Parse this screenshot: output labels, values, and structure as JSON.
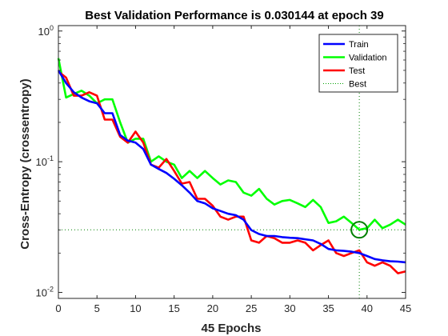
{
  "chart_data": {
    "type": "line",
    "title": "Best Validation Performance is 0.030144 at epoch 39",
    "xlabel": "45 Epochs",
    "ylabel": "Cross-Entropy  (crossentropy)",
    "xlim": [
      0,
      45
    ],
    "ylim": [
      0.009,
      1.1
    ],
    "yscale": "log",
    "xticks": [
      0,
      5,
      10,
      15,
      20,
      25,
      30,
      35,
      40,
      45
    ],
    "yticks": [
      {
        "value": 1,
        "base": "10",
        "exp": "0"
      },
      {
        "value": 0.1,
        "base": "10",
        "exp": "-1"
      },
      {
        "value": 0.01,
        "base": "10",
        "exp": "-2"
      }
    ],
    "grid": false,
    "legend_position": "top-right",
    "series": [
      {
        "name": "Train",
        "color": "#0000ff",
        "x": [
          0,
          1,
          2,
          3,
          4,
          5,
          6,
          7,
          8,
          9,
          10,
          11,
          12,
          13,
          14,
          15,
          16,
          17,
          18,
          19,
          20,
          21,
          22,
          23,
          24,
          25,
          26,
          27,
          28,
          29,
          30,
          31,
          32,
          33,
          34,
          35,
          36,
          37,
          38,
          39,
          40,
          41,
          42,
          43,
          44,
          45
        ],
        "y": [
          0.5,
          0.4,
          0.34,
          0.31,
          0.29,
          0.28,
          0.235,
          0.235,
          0.16,
          0.145,
          0.14,
          0.125,
          0.095,
          0.088,
          0.082,
          0.074,
          0.066,
          0.058,
          0.05,
          0.048,
          0.044,
          0.042,
          0.04,
          0.039,
          0.036,
          0.03,
          0.028,
          0.027,
          0.027,
          0.0265,
          0.0262,
          0.026,
          0.0255,
          0.025,
          0.0235,
          0.0215,
          0.021,
          0.0208,
          0.0205,
          0.02,
          0.019,
          0.018,
          0.0176,
          0.0173,
          0.0172,
          0.017
        ]
      },
      {
        "name": "Validation",
        "color": "#00ff00",
        "x": [
          0,
          1,
          2,
          3,
          4,
          5,
          6,
          7,
          8,
          9,
          10,
          11,
          12,
          13,
          14,
          15,
          16,
          17,
          18,
          19,
          20,
          21,
          22,
          23,
          24,
          25,
          26,
          27,
          28,
          29,
          30,
          31,
          32,
          33,
          34,
          35,
          36,
          37,
          38,
          39,
          40,
          41,
          42,
          43,
          44,
          45
        ],
        "y": [
          0.62,
          0.31,
          0.33,
          0.35,
          0.32,
          0.28,
          0.3,
          0.3,
          0.2,
          0.14,
          0.15,
          0.15,
          0.1,
          0.11,
          0.1,
          0.095,
          0.075,
          0.085,
          0.075,
          0.085,
          0.075,
          0.067,
          0.072,
          0.07,
          0.058,
          0.055,
          0.062,
          0.052,
          0.047,
          0.05,
          0.051,
          0.048,
          0.045,
          0.051,
          0.045,
          0.034,
          0.035,
          0.038,
          0.034,
          0.030144,
          0.031,
          0.036,
          0.031,
          0.033,
          0.036,
          0.033
        ]
      },
      {
        "name": "Test",
        "color": "#ff0000",
        "x": [
          0,
          1,
          2,
          3,
          4,
          5,
          6,
          7,
          8,
          9,
          10,
          11,
          12,
          13,
          14,
          15,
          16,
          17,
          18,
          19,
          20,
          21,
          22,
          23,
          24,
          25,
          26,
          27,
          28,
          29,
          30,
          31,
          32,
          33,
          34,
          35,
          36,
          37,
          38,
          39,
          40,
          41,
          42,
          43,
          44,
          45
        ],
        "y": [
          0.49,
          0.44,
          0.32,
          0.32,
          0.34,
          0.32,
          0.21,
          0.21,
          0.155,
          0.14,
          0.17,
          0.14,
          0.095,
          0.09,
          0.105,
          0.085,
          0.068,
          0.07,
          0.052,
          0.052,
          0.046,
          0.038,
          0.036,
          0.038,
          0.038,
          0.025,
          0.024,
          0.027,
          0.026,
          0.024,
          0.024,
          0.025,
          0.024,
          0.021,
          0.023,
          0.025,
          0.02,
          0.019,
          0.02,
          0.021,
          0.017,
          0.016,
          0.017,
          0.016,
          0.014,
          0.0145
        ]
      },
      {
        "name": "Best",
        "color": "#00a000",
        "style": "dotted"
      }
    ],
    "best": {
      "epoch": 39,
      "value": 0.030144,
      "color": "#008000"
    }
  }
}
